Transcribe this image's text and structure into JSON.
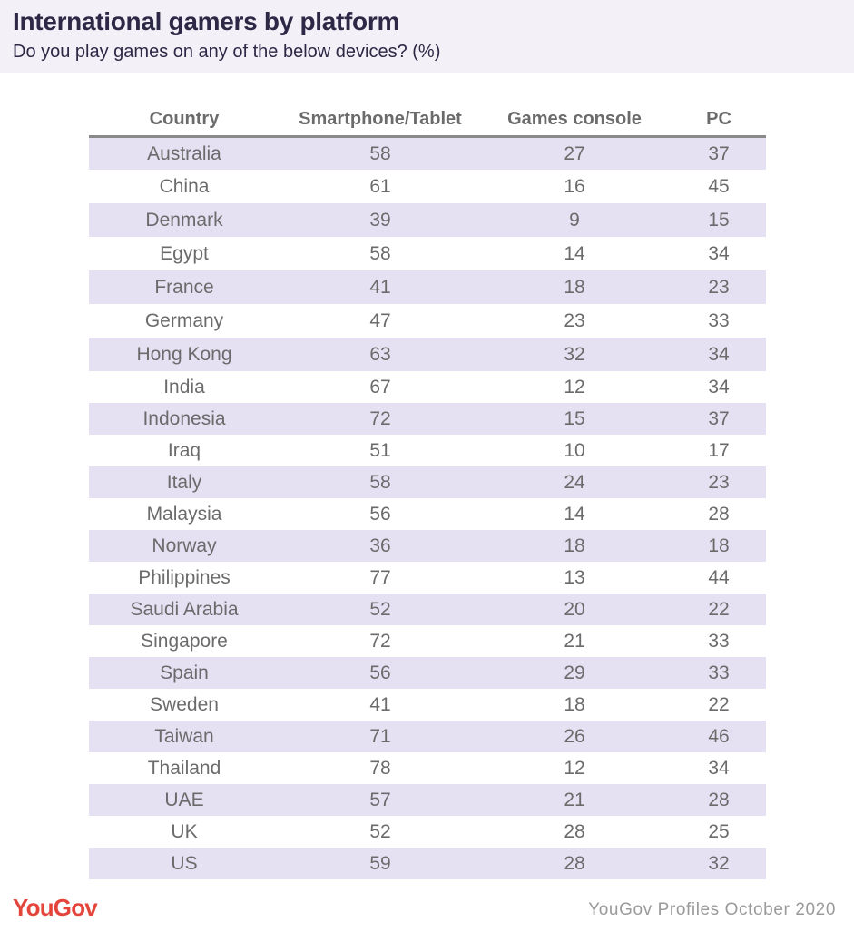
{
  "header": {
    "title": "International gamers by platform",
    "subtitle": "Do you play games on any of the below devices? (%)"
  },
  "chart_data": {
    "type": "table",
    "title": "International gamers by platform",
    "subtitle": "Do you play games on any of the below devices? (%)",
    "columns": [
      "Country",
      "Smartphone/Tablet",
      "Games console",
      "PC"
    ],
    "rows": [
      [
        "Australia",
        "58",
        "27",
        "37"
      ],
      [
        "China",
        "61",
        "16",
        "45"
      ],
      [
        "Denmark",
        "39",
        "9",
        "15"
      ],
      [
        "Egypt",
        "58",
        "14",
        "34"
      ],
      [
        "France",
        "41",
        "18",
        "23"
      ],
      [
        "Germany",
        "47",
        "23",
        "33"
      ],
      [
        "Hong Kong",
        "63",
        "32",
        "34"
      ],
      [
        "India",
        "67",
        "12",
        "34"
      ],
      [
        "Indonesia",
        "72",
        "15",
        "37"
      ],
      [
        "Iraq",
        "51",
        "10",
        "17"
      ],
      [
        "Italy",
        "58",
        "24",
        "23"
      ],
      [
        "Malaysia",
        "56",
        "14",
        "28"
      ],
      [
        "Norway",
        "36",
        "18",
        "18"
      ],
      [
        "Philippines",
        "77",
        "13",
        "44"
      ],
      [
        "Saudi Arabia",
        "52",
        "20",
        "22"
      ],
      [
        "Singapore",
        "72",
        "21",
        "33"
      ],
      [
        "Spain",
        "56",
        "29",
        "33"
      ],
      [
        "Sweden",
        "41",
        "18",
        "22"
      ],
      [
        "Taiwan",
        "71",
        "26",
        "46"
      ],
      [
        "Thailand",
        "78",
        "12",
        "34"
      ],
      [
        "UAE",
        "57",
        "21",
        "28"
      ],
      [
        "UK",
        "52",
        "28",
        "25"
      ],
      [
        "US",
        "59",
        "28",
        "32"
      ]
    ]
  },
  "footer": {
    "logo": "YouGov",
    "source": "YouGov Profiles October 2020"
  },
  "colors": {
    "title": "#2d2845",
    "header_background": "#f3f1f7",
    "row_shade": "#e5e1f3",
    "text": "#6b6b6b",
    "logo": "#e3453b",
    "source": "#9a9a9a"
  }
}
